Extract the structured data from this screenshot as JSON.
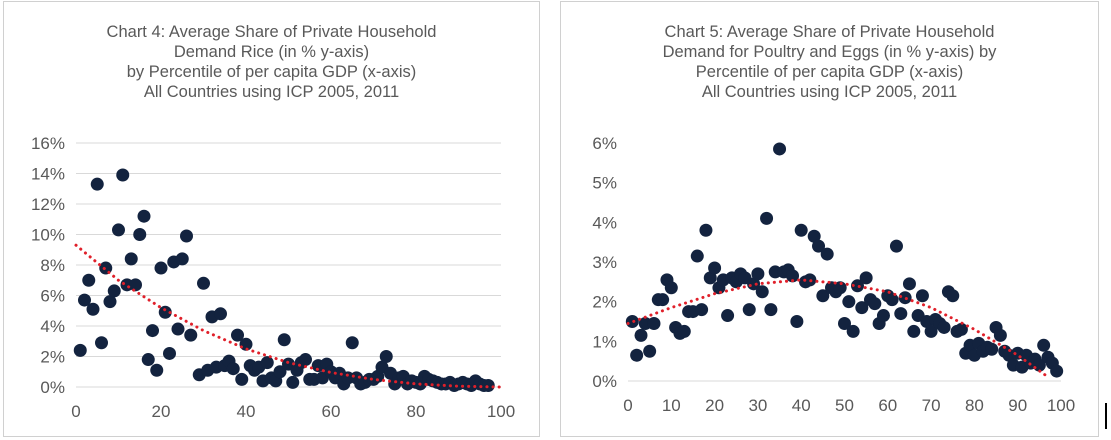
{
  "colors": {
    "point": "#13233f",
    "trend": "#e0202a",
    "grid": "#d9d9d9",
    "text": "#595959"
  },
  "chart_data": [
    {
      "type": "scatter",
      "title_lines": [
        "Chart 4: Average Share of Private Household",
        "Demand Rice (in % y-axis)",
        "by Percentile of per capita GDP (x-axis)",
        "All Countries using ICP 2005, 2011"
      ],
      "xlim": [
        0,
        100
      ],
      "ylim": [
        0,
        16
      ],
      "y_unit": "%",
      "x_ticks": [
        0,
        20,
        40,
        60,
        80,
        100
      ],
      "y_ticks": [
        0,
        2,
        4,
        6,
        8,
        10,
        12,
        14,
        16
      ],
      "x_tick_labels": [
        "0",
        "20",
        "40",
        "60",
        "80",
        "100"
      ],
      "y_tick_labels": [
        "0%",
        "2%",
        "4%",
        "6%",
        "8%",
        "10%",
        "12%",
        "14%",
        "16%"
      ],
      "grid": true,
      "trendline": "polynomial, dotted",
      "trend_points": [
        [
          0,
          9.3
        ],
        [
          10,
          7.0
        ],
        [
          20,
          5.2
        ],
        [
          30,
          3.7
        ],
        [
          40,
          2.5
        ],
        [
          50,
          1.6
        ],
        [
          60,
          0.95
        ],
        [
          70,
          0.5
        ],
        [
          80,
          0.2
        ],
        [
          90,
          0.05
        ],
        [
          100,
          0.0
        ]
      ],
      "points": [
        [
          1,
          2.4
        ],
        [
          2,
          5.7
        ],
        [
          3,
          7.0
        ],
        [
          4,
          5.1
        ],
        [
          5,
          13.3
        ],
        [
          6,
          2.9
        ],
        [
          7,
          7.8
        ],
        [
          8,
          5.6
        ],
        [
          9,
          6.3
        ],
        [
          10,
          10.3
        ],
        [
          11,
          13.9
        ],
        [
          12,
          6.7
        ],
        [
          13,
          8.4
        ],
        [
          14,
          6.7
        ],
        [
          15,
          10.0
        ],
        [
          16,
          11.2
        ],
        [
          17,
          1.8
        ],
        [
          18,
          3.7
        ],
        [
          19,
          1.1
        ],
        [
          20,
          7.8
        ],
        [
          21,
          4.9
        ],
        [
          22,
          2.2
        ],
        [
          23,
          8.2
        ],
        [
          24,
          3.8
        ],
        [
          25,
          8.4
        ],
        [
          26,
          9.9
        ],
        [
          27,
          3.4
        ],
        [
          29,
          0.8
        ],
        [
          30,
          6.8
        ],
        [
          31,
          1.1
        ],
        [
          32,
          4.6
        ],
        [
          33,
          1.3
        ],
        [
          34,
          4.8
        ],
        [
          35,
          1.4
        ],
        [
          36,
          1.7
        ],
        [
          37,
          1.2
        ],
        [
          38,
          3.4
        ],
        [
          39,
          0.5
        ],
        [
          40,
          2.8
        ],
        [
          41,
          1.4
        ],
        [
          42,
          1.1
        ],
        [
          43,
          1.3
        ],
        [
          44,
          0.4
        ],
        [
          45,
          1.6
        ],
        [
          46,
          0.6
        ],
        [
          47,
          0.4
        ],
        [
          48,
          1.0
        ],
        [
          49,
          3.1
        ],
        [
          50,
          1.5
        ],
        [
          51,
          0.3
        ],
        [
          52,
          1.1
        ],
        [
          53,
          1.6
        ],
        [
          54,
          1.8
        ],
        [
          55,
          0.5
        ],
        [
          56,
          0.5
        ],
        [
          57,
          1.4
        ],
        [
          58,
          0.6
        ],
        [
          59,
          1.5
        ],
        [
          60,
          1.0
        ],
        [
          61,
          0.6
        ],
        [
          62,
          0.9
        ],
        [
          63,
          0.2
        ],
        [
          64,
          0.6
        ],
        [
          65,
          2.9
        ],
        [
          66,
          0.6
        ],
        [
          67,
          0.2
        ],
        [
          68,
          0.3
        ],
        [
          69,
          0.5
        ],
        [
          70,
          0.5
        ],
        [
          71,
          0.7
        ],
        [
          72,
          1.3
        ],
        [
          73,
          2.0
        ],
        [
          74,
          0.9
        ],
        [
          75,
          0.2
        ],
        [
          76,
          0.6
        ],
        [
          77,
          0.7
        ],
        [
          78,
          0.2
        ],
        [
          79,
          0.4
        ],
        [
          80,
          0.3
        ],
        [
          81,
          0.2
        ],
        [
          82,
          0.7
        ],
        [
          83,
          0.5
        ],
        [
          84,
          0.4
        ],
        [
          85,
          0.3
        ],
        [
          86,
          0.2
        ],
        [
          87,
          0.2
        ],
        [
          88,
          0.3
        ],
        [
          89,
          0.1
        ],
        [
          90,
          0.2
        ],
        [
          91,
          0.3
        ],
        [
          92,
          0.2
        ],
        [
          93,
          0.1
        ],
        [
          94,
          0.4
        ],
        [
          95,
          0.2
        ],
        [
          96,
          0.1
        ],
        [
          97,
          0.1
        ]
      ]
    },
    {
      "type": "scatter",
      "title_lines": [
        "Chart 5: Average Share of Private Household",
        "Demand for Poultry and Eggs (in % y-axis) by",
        "Percentile of per capita GDP (x-axis)",
        "All Countries using ICP 2005, 2011"
      ],
      "xlim": [
        0,
        100
      ],
      "ylim": [
        0,
        6
      ],
      "y_unit": "%",
      "x_ticks": [
        0,
        10,
        20,
        30,
        40,
        50,
        60,
        70,
        80,
        90,
        100
      ],
      "y_ticks": [
        0,
        1,
        2,
        3,
        4,
        5,
        6
      ],
      "x_tick_labels": [
        "0",
        "10",
        "20",
        "30",
        "40",
        "50",
        "60",
        "70",
        "80",
        "90",
        "100"
      ],
      "y_tick_labels": [
        "0%",
        "1%",
        "2%",
        "3%",
        "4%",
        "5%",
        "6%"
      ],
      "grid": false,
      "trendline": "polynomial, dotted",
      "trend_points": [
        [
          0,
          1.45
        ],
        [
          10,
          1.85
        ],
        [
          20,
          2.2
        ],
        [
          30,
          2.45
        ],
        [
          40,
          2.55
        ],
        [
          50,
          2.45
        ],
        [
          60,
          2.25
        ],
        [
          70,
          1.85
        ],
        [
          80,
          1.3
        ],
        [
          90,
          0.65
        ],
        [
          97,
          0.1
        ]
      ],
      "points": [
        [
          1,
          1.5
        ],
        [
          2,
          0.65
        ],
        [
          3,
          1.15
        ],
        [
          4,
          1.45
        ],
        [
          5,
          0.75
        ],
        [
          6,
          1.45
        ],
        [
          7,
          2.05
        ],
        [
          8,
          2.05
        ],
        [
          9,
          2.55
        ],
        [
          10,
          2.35
        ],
        [
          11,
          1.35
        ],
        [
          12,
          1.2
        ],
        [
          13,
          1.25
        ],
        [
          14,
          1.75
        ],
        [
          15,
          1.75
        ],
        [
          16,
          3.15
        ],
        [
          17,
          1.8
        ],
        [
          18,
          3.8
        ],
        [
          19,
          2.6
        ],
        [
          20,
          2.85
        ],
        [
          21,
          2.35
        ],
        [
          22,
          2.55
        ],
        [
          23,
          1.65
        ],
        [
          24,
          2.6
        ],
        [
          25,
          2.5
        ],
        [
          26,
          2.7
        ],
        [
          27,
          2.6
        ],
        [
          28,
          1.8
        ],
        [
          29,
          2.45
        ],
        [
          30,
          2.7
        ],
        [
          31,
          2.25
        ],
        [
          32,
          4.1
        ],
        [
          33,
          1.8
        ],
        [
          34,
          2.75
        ],
        [
          35,
          5.85
        ],
        [
          36,
          2.75
        ],
        [
          37,
          2.8
        ],
        [
          38,
          2.65
        ],
        [
          39,
          1.5
        ],
        [
          40,
          3.8
        ],
        [
          41,
          2.5
        ],
        [
          42,
          2.55
        ],
        [
          43,
          3.65
        ],
        [
          44,
          3.4
        ],
        [
          45,
          2.15
        ],
        [
          46,
          3.2
        ],
        [
          47,
          2.35
        ],
        [
          48,
          2.25
        ],
        [
          49,
          2.35
        ],
        [
          50,
          1.45
        ],
        [
          51,
          2.0
        ],
        [
          52,
          1.25
        ],
        [
          53,
          2.4
        ],
        [
          54,
          1.85
        ],
        [
          55,
          2.6
        ],
        [
          56,
          2.05
        ],
        [
          57,
          1.95
        ],
        [
          58,
          1.45
        ],
        [
          59,
          1.65
        ],
        [
          60,
          2.15
        ],
        [
          61,
          2.05
        ],
        [
          62,
          3.4
        ],
        [
          63,
          1.7
        ],
        [
          64,
          2.1
        ],
        [
          65,
          2.45
        ],
        [
          66,
          1.25
        ],
        [
          67,
          1.65
        ],
        [
          68,
          2.15
        ],
        [
          69,
          1.5
        ],
        [
          70,
          1.25
        ],
        [
          71,
          1.55
        ],
        [
          72,
          1.45
        ],
        [
          73,
          1.35
        ],
        [
          74,
          2.25
        ],
        [
          75,
          2.15
        ],
        [
          76,
          1.25
        ],
        [
          77,
          1.3
        ],
        [
          78,
          0.7
        ],
        [
          79,
          0.9
        ],
        [
          80,
          0.65
        ],
        [
          81,
          0.95
        ],
        [
          82,
          0.75
        ],
        [
          83,
          0.85
        ],
        [
          84,
          0.8
        ],
        [
          85,
          1.35
        ],
        [
          86,
          1.15
        ],
        [
          87,
          0.75
        ],
        [
          88,
          0.65
        ],
        [
          89,
          0.4
        ],
        [
          90,
          0.7
        ],
        [
          91,
          0.35
        ],
        [
          92,
          0.65
        ],
        [
          93,
          0.45
        ],
        [
          94,
          0.55
        ],
        [
          95,
          0.4
        ],
        [
          96,
          0.9
        ],
        [
          97,
          0.6
        ],
        [
          98,
          0.45
        ],
        [
          99,
          0.25
        ]
      ]
    }
  ]
}
